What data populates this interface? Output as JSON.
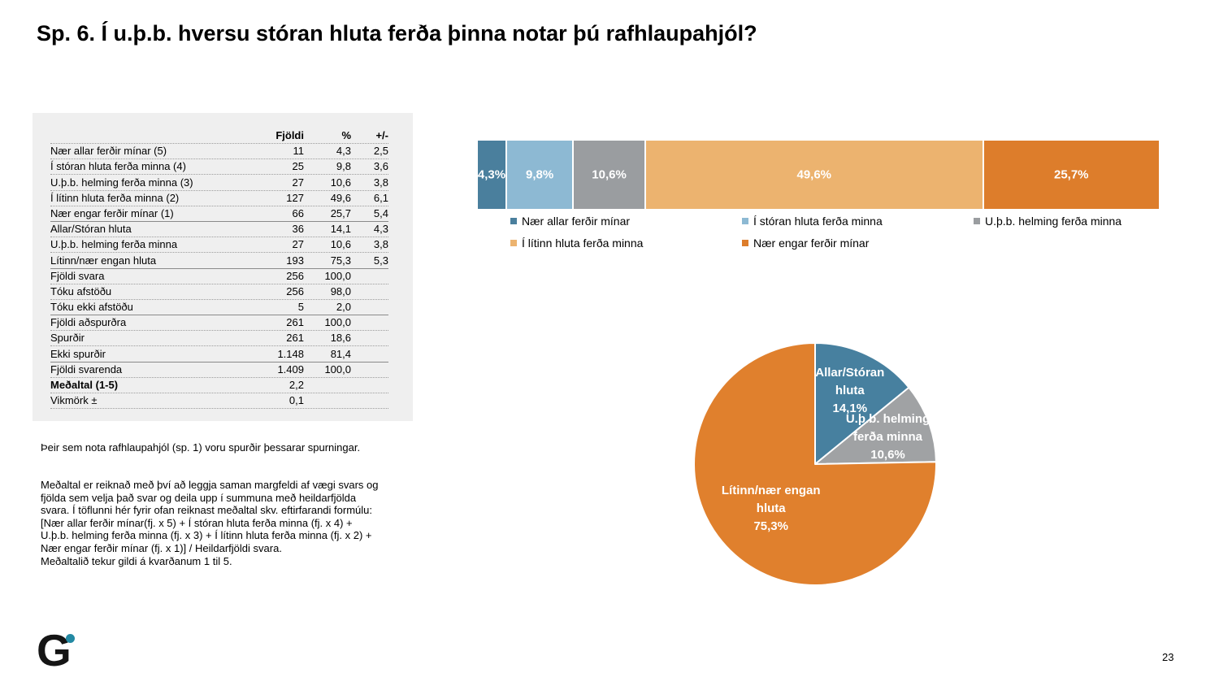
{
  "slide": {
    "title": "Sp. 6. Í u.þ.b. hversu stóran hluta ferða þinna notar þú rafhlaupahjól?",
    "page_number": "23",
    "logo_letter": "G",
    "logo_dot_color": "#2389a3"
  },
  "table": {
    "headers": {
      "count": "Fjöldi",
      "percent": "%",
      "moe": "+/-"
    },
    "rows": [
      {
        "label": "Nær allar ferðir mínar (5)",
        "fjoldi": "11",
        "pct": "4,3",
        "moe": "2,5",
        "bold": false,
        "group_end": false
      },
      {
        "label": "Í stóran hluta ferða minna (4)",
        "fjoldi": "25",
        "pct": "9,8",
        "moe": "3,6",
        "bold": false,
        "group_end": false
      },
      {
        "label": "U.þ.b. helming ferða minna (3)",
        "fjoldi": "27",
        "pct": "10,6",
        "moe": "3,8",
        "bold": false,
        "group_end": false
      },
      {
        "label": "Í lítinn hluta ferða minna (2)",
        "fjoldi": "127",
        "pct": "49,6",
        "moe": "6,1",
        "bold": false,
        "group_end": false
      },
      {
        "label": "Nær engar ferðir mínar (1)",
        "fjoldi": "66",
        "pct": "25,7",
        "moe": "5,4",
        "bold": false,
        "group_end": true
      },
      {
        "label": "Allar/Stóran hluta",
        "fjoldi": "36",
        "pct": "14,1",
        "moe": "4,3",
        "bold": false,
        "group_end": false
      },
      {
        "label": "U.þ.b. helming ferða minna",
        "fjoldi": "27",
        "pct": "10,6",
        "moe": "3,8",
        "bold": false,
        "group_end": false
      },
      {
        "label": "Lítinn/nær engan hluta",
        "fjoldi": "193",
        "pct": "75,3",
        "moe": "5,3",
        "bold": false,
        "group_end": true
      },
      {
        "label": "Fjöldi svara",
        "fjoldi": "256",
        "pct": "100,0",
        "moe": "",
        "bold": false,
        "group_end": false
      },
      {
        "label": "Tóku afstöðu",
        "fjoldi": "256",
        "pct": "98,0",
        "moe": "",
        "bold": false,
        "group_end": false
      },
      {
        "label": "Tóku ekki afstöðu",
        "fjoldi": "5",
        "pct": "2,0",
        "moe": "",
        "bold": false,
        "group_end": true
      },
      {
        "label": "Fjöldi aðspurðra",
        "fjoldi": "261",
        "pct": "100,0",
        "moe": "",
        "bold": false,
        "group_end": false
      },
      {
        "label": "Spurðir",
        "fjoldi": "261",
        "pct": "18,6",
        "moe": "",
        "bold": false,
        "group_end": false
      },
      {
        "label": "Ekki spurðir",
        "fjoldi": "1.148",
        "pct": "81,4",
        "moe": "",
        "bold": false,
        "group_end": true
      },
      {
        "label": "Fjöldi svarenda",
        "fjoldi": "1.409",
        "pct": "100,0",
        "moe": "",
        "bold": false,
        "group_end": false
      },
      {
        "label": "Meðaltal (1-5)",
        "fjoldi": "2,2",
        "pct": "",
        "moe": "",
        "bold": true,
        "group_end": false
      },
      {
        "label": "Vikmörk ±",
        "fjoldi": "0,1",
        "pct": "",
        "moe": "",
        "bold": false,
        "group_end": false
      }
    ]
  },
  "notes": {
    "note1": "Þeir sem nota rafhlaupahjól (sp. 1) voru spurðir þessarar spurningar.",
    "note2": "Meðaltal er reiknað með því að leggja saman margfeldi af vægi svars og\nfjölda sem velja það svar og deila upp í summuna með heildarfjölda\nsvara.  Í töflunni hér fyrir ofan reiknast meðaltal skv. eftirfarandi formúlu:\n[Nær allar ferðir mínar(fj. x 5) + Í stóran hluta ferða minna (fj. x 4) +\nU.þ.b. helming ferða minna (fj. x 3) + Í lítinn hluta ferða minna (fj. x 2) +\nNær engar ferðir mínar (fj. x 1)] / Heildarfjöldi svara.\nMeðaltalið tekur gildi á kvarðanum 1 til 5."
  },
  "chart_data": [
    {
      "type": "bar",
      "subtype": "horizontal-stacked-100pct",
      "title": "",
      "legend_position": "bottom",
      "series": [
        {
          "name": "Nær allar ferðir mínar",
          "value": 4.3,
          "label": "4,3%",
          "color": "#4a7f9d"
        },
        {
          "name": "Í stóran hluta ferða minna",
          "value": 9.8,
          "label": "9,8%",
          "color": "#8db9d3"
        },
        {
          "name": "U.þ.b. helming ferða minna",
          "value": 10.6,
          "label": "10,6%",
          "color": "#9a9da0"
        },
        {
          "name": "Í lítinn hluta ferða minna",
          "value": 49.6,
          "label": "49,6%",
          "color": "#ecb36f"
        },
        {
          "name": "Nær engar ferðir mínar",
          "value": 25.7,
          "label": "25,7%",
          "color": "#dd7d2b"
        }
      ]
    },
    {
      "type": "pie",
      "title": "",
      "start_angle_deg": 0,
      "direction": "clockwise",
      "slices": [
        {
          "name": "Allar/Stóran hluta",
          "value": 14.1,
          "label": "Allar/Stóran\nhluta\n14,1%",
          "color": "#47809f"
        },
        {
          "name": "U.þ.b. helming ferða minna",
          "value": 10.6,
          "label": "U.þ.b. helming\nferða minna\n10,6%",
          "color": "#a0a2a4"
        },
        {
          "name": "Lítinn/nær engan hluta",
          "value": 75.3,
          "label": "Lítinn/nær engan\nhluta\n75,3%",
          "color": "#e0802d"
        }
      ]
    }
  ]
}
